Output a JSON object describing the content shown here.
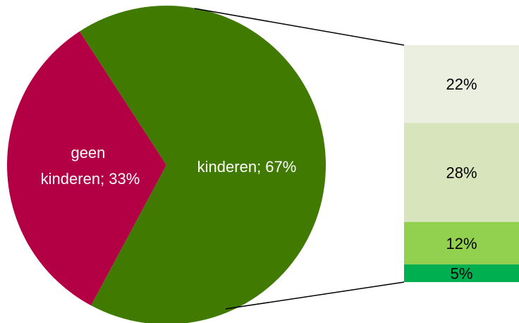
{
  "chart_data": {
    "type": "pie",
    "title": "",
    "pie": {
      "slices": [
        {
          "label_line1": "geen",
          "label_line2": "kinderen; 33%",
          "value": 33,
          "color": "#b30044"
        },
        {
          "label": "kinderen; 67%",
          "value": 67,
          "color": "#417a00"
        }
      ]
    },
    "breakdown": {
      "type": "stacked-bar",
      "of_slice": "kinderen",
      "segments": [
        {
          "label": "22%",
          "value": 22,
          "color": "#ebefe0"
        },
        {
          "label": "28%",
          "value": 28,
          "color": "#d8e4bc"
        },
        {
          "label": "12%",
          "value": 12,
          "color": "#92d050"
        },
        {
          "label": "5%",
          "value": 5,
          "color": "#00b050"
        }
      ]
    },
    "connector_color": "#000000",
    "grid": false,
    "legend": "none"
  }
}
